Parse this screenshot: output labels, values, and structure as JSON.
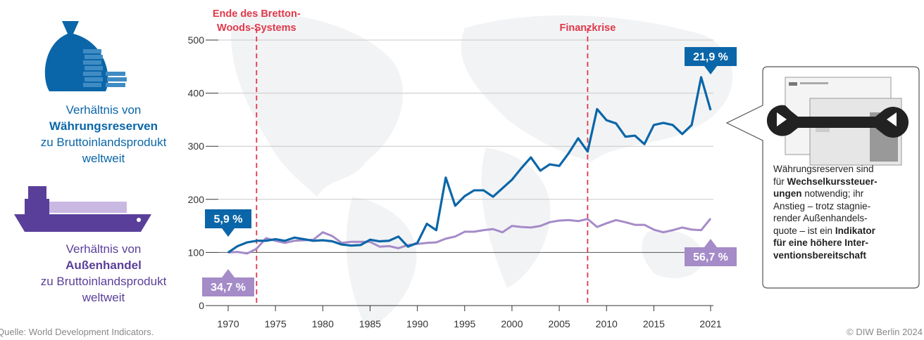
{
  "chart_data": {
    "type": "line",
    "x": [
      1970,
      1971,
      1972,
      1973,
      1974,
      1975,
      1976,
      1977,
      1978,
      1979,
      1980,
      1981,
      1982,
      1983,
      1984,
      1985,
      1986,
      1987,
      1988,
      1989,
      1990,
      1991,
      1992,
      1993,
      1994,
      1995,
      1996,
      1997,
      1998,
      1999,
      2000,
      2001,
      2002,
      2003,
      2004,
      2005,
      2006,
      2007,
      2008,
      2009,
      2010,
      2011,
      2012,
      2013,
      2014,
      2015,
      2016,
      2017,
      2018,
      2019,
      2020,
      2021
    ],
    "series": [
      {
        "name": "Währungsreserven",
        "color": "#0a66a8",
        "text_color": "#0a66a8",
        "values": [
          100,
          112,
          119,
          122,
          122,
          125,
          122,
          128,
          125,
          122,
          123,
          121,
          115,
          113,
          114,
          124,
          121,
          122,
          130,
          111,
          118,
          154,
          142,
          241,
          188,
          206,
          217,
          217,
          205,
          221,
          237,
          259,
          279,
          254,
          266,
          263,
          287,
          315,
          290,
          370,
          349,
          343,
          318,
          320,
          304,
          340,
          344,
          340,
          323,
          340,
          430,
          368
        ]
      },
      {
        "name": "Außenhandel",
        "color": "#a58bc8",
        "text_color": "#5a3f9a",
        "values": [
          100,
          101,
          98,
          107,
          127,
          122,
          118,
          122,
          123,
          124,
          138,
          131,
          118,
          120,
          120,
          120,
          111,
          112,
          108,
          114,
          116,
          118,
          119,
          126,
          130,
          139,
          139,
          142,
          144,
          138,
          150,
          148,
          147,
          150,
          157,
          160,
          161,
          159,
          163,
          148,
          155,
          161,
          157,
          152,
          152,
          143,
          138,
          142,
          147,
          143,
          142,
          164
        ]
      }
    ],
    "legend_text": {
      "before": "Verhältnis von",
      "after": "zu Bruttoinlandsprodukt weltweit"
    },
    "xlim": [
      1970,
      2021
    ],
    "xticks": [
      1970,
      1975,
      1980,
      1985,
      1990,
      1995,
      2000,
      2005,
      2010,
      2015,
      2021
    ],
    "ylim": [
      0,
      500
    ],
    "yticks": [
      0,
      100,
      200,
      300,
      400,
      500
    ],
    "grid": true,
    "events": [
      {
        "x": 1973,
        "label": [
          "Ende des Bretton-",
          "Woods-Systems"
        ]
      },
      {
        "x": 2008,
        "label": [
          "Finanzkrise"
        ]
      }
    ],
    "annotations": [
      {
        "x": 1970,
        "series": 0,
        "label": "5,9 %"
      },
      {
        "x": 1970,
        "series": 1,
        "label": "34,7 %"
      },
      {
        "x": 2021,
        "series": 0,
        "label": "21,9 %"
      },
      {
        "x": 2021,
        "series": 1,
        "label": "56,7 %"
      }
    ],
    "note": [
      [
        {
          "text": "Währungsreserven sind",
          "bold": false
        }
      ],
      [
        {
          "text": "für ",
          "bold": false
        },
        {
          "text": "Wechselkurssteuer-",
          "bold": true
        }
      ],
      [
        {
          "text": "ungen",
          "bold": true
        },
        {
          "text": " notwendig; ihr",
          "bold": false
        }
      ],
      [
        {
          "text": "Anstieg – trotz stagnie-",
          "bold": false
        }
      ],
      [
        {
          "text": "render Außenhandels-",
          "bold": false
        }
      ],
      [
        {
          "text": "quote – ist ein ",
          "bold": false
        },
        {
          "text": "Indikator",
          "bold": true
        }
      ],
      [
        {
          "text": "für eine höhere Inter-",
          "bold": true
        }
      ],
      [
        {
          "text": "ventionsbereitschaft",
          "bold": true
        }
      ]
    ],
    "source": "Quelle: World Development Indicators.",
    "copyright": "© DIW Berlin 2024"
  }
}
